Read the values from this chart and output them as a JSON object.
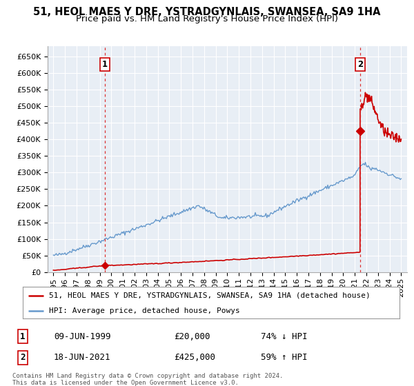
{
  "title": "51, HEOL MAES Y DRE, YSTRADGYNLAIS, SWANSEA, SA9 1HA",
  "subtitle": "Price paid vs. HM Land Registry's House Price Index (HPI)",
  "ylabel_ticks": [
    "£0",
    "£50K",
    "£100K",
    "£150K",
    "£200K",
    "£250K",
    "£300K",
    "£350K",
    "£400K",
    "£450K",
    "£500K",
    "£550K",
    "£600K",
    "£650K"
  ],
  "ytick_values": [
    0,
    50000,
    100000,
    150000,
    200000,
    250000,
    300000,
    350000,
    400000,
    450000,
    500000,
    550000,
    600000,
    650000
  ],
  "ylim": [
    0,
    680000
  ],
  "xlim_start": 1994.5,
  "xlim_end": 2025.5,
  "xtick_years": [
    1995,
    1996,
    1997,
    1998,
    1999,
    2000,
    2001,
    2002,
    2003,
    2004,
    2005,
    2006,
    2007,
    2008,
    2009,
    2010,
    2011,
    2012,
    2013,
    2014,
    2015,
    2016,
    2017,
    2018,
    2019,
    2020,
    2021,
    2022,
    2023,
    2024,
    2025
  ],
  "sale1_x": 1999.44,
  "sale1_y": 20000,
  "sale1_label": "1",
  "sale2_x": 2021.46,
  "sale2_y": 425000,
  "sale2_label": "2",
  "vline_color": "#dd3333",
  "property_line_color": "#cc0000",
  "hpi_line_color": "#6699cc",
  "chart_bg_color": "#e8eef5",
  "background_color": "#ffffff",
  "grid_color": "#ffffff",
  "legend_label1": "51, HEOL MAES Y DRE, YSTRADGYNLAIS, SWANSEA, SA9 1HA (detached house)",
  "legend_label2": "HPI: Average price, detached house, Powys",
  "annotation1_date": "09-JUN-1999",
  "annotation1_price": "£20,000",
  "annotation1_hpi": "74% ↓ HPI",
  "annotation2_date": "18-JUN-2021",
  "annotation2_price": "£425,000",
  "annotation2_hpi": "59% ↑ HPI",
  "footnote": "Contains HM Land Registry data © Crown copyright and database right 2024.\nThis data is licensed under the Open Government Licence v3.0.",
  "title_fontsize": 10.5,
  "subtitle_fontsize": 9.5,
  "tick_fontsize": 8,
  "legend_fontsize": 8,
  "annotation_fontsize": 9
}
